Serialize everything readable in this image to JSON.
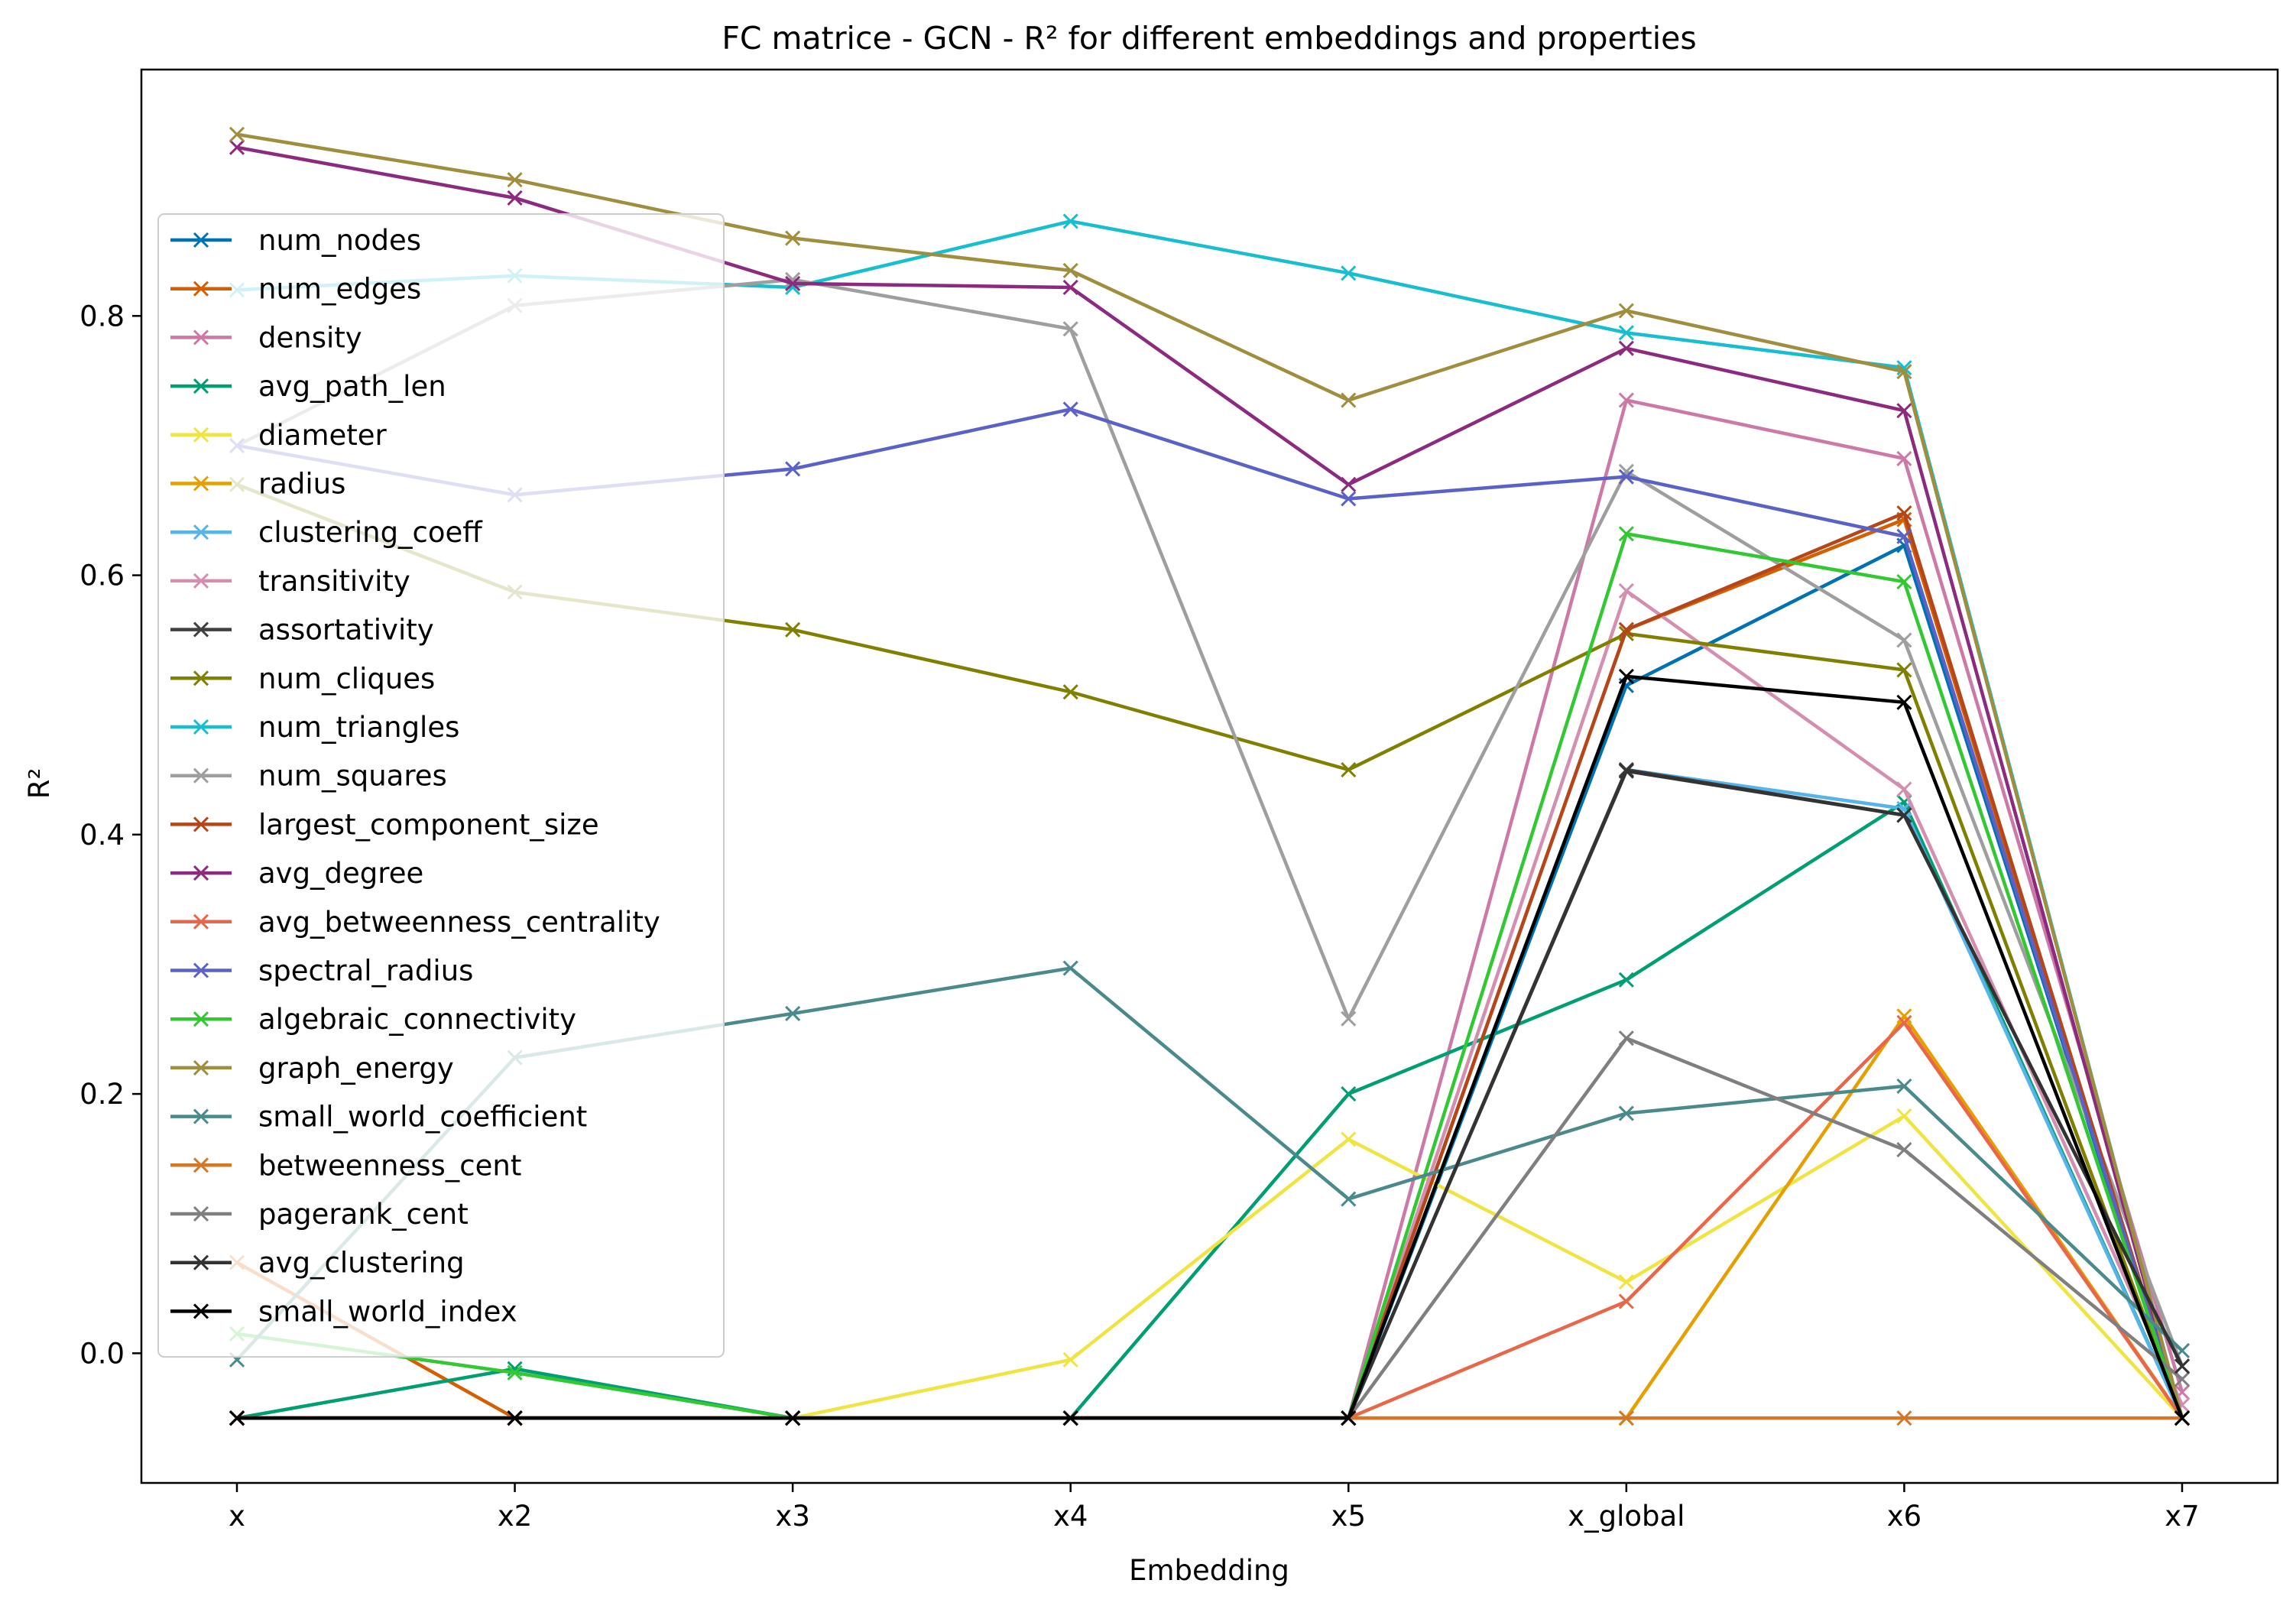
{
  "chart_data": {
    "type": "line",
    "title": "FC matrice - GCN - R² for different embeddings and properties",
    "xlabel": "Embedding",
    "ylabel": "R²",
    "categories": [
      "x",
      "x2",
      "x3",
      "x4",
      "x5",
      "x_global",
      "x6",
      "x7"
    ],
    "ylim": [
      -0.1,
      0.99
    ],
    "yticks": [
      "0.0",
      "0.2",
      "0.4",
      "0.6",
      "0.8"
    ],
    "grid": false,
    "legend_position": "upper-left",
    "series": [
      {
        "name": "num_nodes",
        "color": "#0072b2",
        "values": [
          -0.05,
          -0.05,
          -0.05,
          -0.05,
          -0.05,
          0.515,
          0.623,
          -0.05
        ]
      },
      {
        "name": "num_edges",
        "color": "#d55e00",
        "values": [
          0.07,
          -0.05,
          -0.05,
          -0.05,
          -0.05,
          0.558,
          0.643,
          -0.05
        ]
      },
      {
        "name": "density",
        "color": "#cc79a7",
        "values": [
          -0.05,
          -0.05,
          -0.05,
          -0.05,
          -0.05,
          0.735,
          0.69,
          -0.03
        ]
      },
      {
        "name": "avg_path_len",
        "color": "#009e73",
        "values": [
          -0.05,
          -0.012,
          -0.05,
          -0.05,
          0.2,
          0.288,
          0.425,
          -0.05
        ]
      },
      {
        "name": "diameter",
        "color": "#f0e442",
        "values": [
          -0.05,
          -0.05,
          -0.05,
          -0.005,
          0.165,
          0.055,
          0.183,
          -0.05
        ]
      },
      {
        "name": "radius",
        "color": "#e69f00",
        "values": [
          -0.05,
          -0.05,
          -0.05,
          -0.05,
          -0.05,
          -0.05,
          0.26,
          -0.05
        ]
      },
      {
        "name": "clustering_coeff",
        "color": "#56b4e9",
        "values": [
          -0.05,
          -0.05,
          -0.05,
          -0.05,
          -0.05,
          0.45,
          0.42,
          -0.05
        ]
      },
      {
        "name": "transitivity",
        "color": "#d48fb0",
        "values": [
          -0.05,
          -0.05,
          -0.05,
          -0.05,
          -0.05,
          0.588,
          0.435,
          -0.04
        ]
      },
      {
        "name": "assortativity",
        "color": "#404040",
        "values": [
          -0.05,
          -0.05,
          -0.05,
          -0.05,
          -0.05,
          0.45,
          0.415,
          -0.01
        ]
      },
      {
        "name": "num_cliques",
        "color": "#808000",
        "values": [
          0.67,
          0.587,
          0.558,
          0.51,
          0.45,
          0.555,
          0.527,
          -0.05
        ]
      },
      {
        "name": "num_triangles",
        "color": "#17becf",
        "values": [
          0.82,
          0.831,
          0.822,
          0.873,
          0.833,
          0.787,
          0.76,
          -0.05
        ]
      },
      {
        "name": "num_squares",
        "color": "#9e9e9e",
        "values": [
          0.7,
          0.808,
          0.828,
          0.79,
          0.258,
          0.68,
          0.55,
          -0.01
        ]
      },
      {
        "name": "largest_component_size",
        "color": "#b4461a",
        "values": [
          -0.05,
          -0.05,
          -0.05,
          -0.05,
          -0.05,
          0.558,
          0.648,
          -0.05
        ]
      },
      {
        "name": "avg_degree",
        "color": "#8c2a7f",
        "values": [
          0.93,
          0.891,
          0.825,
          0.822,
          0.67,
          0.775,
          0.727,
          -0.05
        ]
      },
      {
        "name": "avg_betweenness_centrality",
        "color": "#e8664a",
        "values": [
          -0.05,
          -0.05,
          -0.05,
          -0.05,
          -0.05,
          0.04,
          0.255,
          -0.05
        ]
      },
      {
        "name": "spectral_radius",
        "color": "#5a62c8",
        "values": [
          0.7,
          0.662,
          0.682,
          0.728,
          0.659,
          0.676,
          0.63,
          -0.05
        ]
      },
      {
        "name": "algebraic_connectivity",
        "color": "#32c832",
        "values": [
          0.015,
          -0.015,
          -0.05,
          -0.05,
          -0.05,
          0.632,
          0.595,
          -0.05
        ]
      },
      {
        "name": "graph_energy",
        "color": "#9e8e3e",
        "values": [
          0.94,
          0.905,
          0.86,
          0.835,
          0.735,
          0.804,
          0.757,
          -0.05
        ]
      },
      {
        "name": "small_world_coefficient",
        "color": "#4a8a8a",
        "values": [
          -0.005,
          0.228,
          0.262,
          0.297,
          0.119,
          0.185,
          0.206,
          0.002
        ]
      },
      {
        "name": "betweenness_cent",
        "color": "#d2782a",
        "values": [
          -0.05,
          -0.05,
          -0.05,
          -0.05,
          -0.05,
          -0.05,
          -0.05,
          -0.05
        ]
      },
      {
        "name": "pagerank_cent",
        "color": "#7f7f7f",
        "values": [
          -0.05,
          -0.05,
          -0.05,
          -0.05,
          -0.05,
          0.243,
          0.157,
          -0.02
        ]
      },
      {
        "name": "avg_clustering",
        "color": "#333333",
        "values": [
          -0.05,
          -0.05,
          -0.05,
          -0.05,
          -0.05,
          0.449,
          0.415,
          -0.01
        ]
      },
      {
        "name": "small_world_index",
        "color": "#000000",
        "values": [
          -0.05,
          -0.05,
          -0.05,
          -0.05,
          -0.05,
          0.522,
          0.502,
          -0.05
        ]
      }
    ]
  }
}
